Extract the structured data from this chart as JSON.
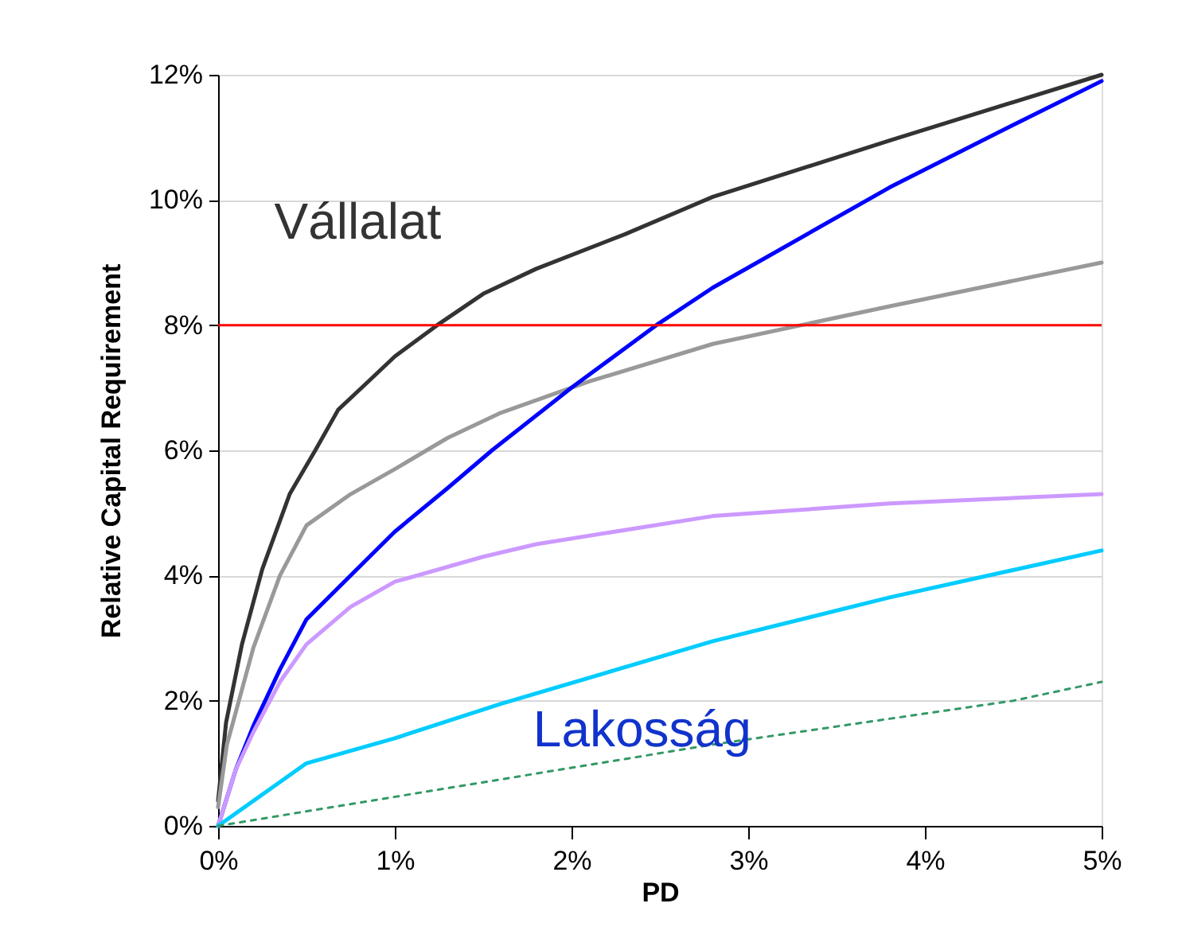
{
  "chart_data": {
    "type": "line",
    "xlabel": "PD",
    "ylabel": "Relative Capital Requirement",
    "xlim": [
      0,
      5
    ],
    "xticks": [
      {
        "value": 0,
        "label": "0%"
      },
      {
        "value": 1,
        "label": "1%"
      },
      {
        "value": 2,
        "label": "2%"
      },
      {
        "value": 3,
        "label": "3%"
      },
      {
        "value": 4,
        "label": "4%"
      },
      {
        "value": 5,
        "label": "5%"
      }
    ],
    "ylim": [
      0,
      12
    ],
    "yticks": [
      {
        "value": 0,
        "label": "0%"
      },
      {
        "value": 2,
        "label": "2%"
      },
      {
        "value": 4,
        "label": "4%"
      },
      {
        "value": 6,
        "label": "6%"
      },
      {
        "value": 8,
        "label": "8%"
      },
      {
        "value": 10,
        "label": "10%"
      },
      {
        "value": 12,
        "label": "12%"
      }
    ],
    "grid": "y",
    "marker": "none",
    "series": [
      {
        "color": "#333333",
        "x": [
          0,
          0.045,
          0.135,
          0.25,
          0.405,
          0.55,
          0.68,
          0.85,
          1.0,
          1.24,
          1.5,
          1.8,
          2.3,
          2.8,
          3.8,
          5.0
        ],
        "values": [
          0.4,
          1.65,
          2.9,
          4.1,
          5.3,
          6.0,
          6.65,
          7.1,
          7.5,
          8.0,
          8.5,
          8.9,
          9.45,
          10.05,
          10.95,
          12.0
        ]
      },
      {
        "color": "#999999",
        "x": [
          0,
          0.05,
          0.2,
          0.35,
          0.5,
          0.75,
          1.0,
          1.3,
          1.6,
          2.1,
          2.8,
          3.8,
          5.0
        ],
        "values": [
          0.3,
          1.3,
          2.85,
          4.0,
          4.8,
          5.3,
          5.7,
          6.2,
          6.6,
          7.1,
          7.7,
          8.3,
          9.0
        ]
      },
      {
        "color": "#0000ff",
        "x": [
          0,
          0.1,
          0.2,
          0.35,
          0.5,
          0.75,
          1.0,
          1.3,
          1.55,
          2.0,
          2.48,
          2.8,
          3.8,
          4.5,
          5.0
        ],
        "values": [
          0,
          0.9,
          1.6,
          2.5,
          3.3,
          4.0,
          4.7,
          5.4,
          6.0,
          7.0,
          8.0,
          8.6,
          10.2,
          11.2,
          11.9
        ]
      },
      {
        "color": "#cc99ff",
        "x": [
          0,
          0.1,
          0.2,
          0.35,
          0.5,
          0.75,
          1.0,
          1.5,
          1.8,
          2.8,
          3.8,
          5.0
        ],
        "values": [
          0,
          0.9,
          1.5,
          2.3,
          2.9,
          3.5,
          3.9,
          4.3,
          4.5,
          4.95,
          5.15,
          5.3
        ]
      },
      {
        "color": "#00ccff",
        "x": [
          0,
          0.5,
          1.0,
          1.6,
          2.8,
          3.8,
          5.0
        ],
        "values": [
          0,
          1.0,
          1.4,
          1.95,
          2.95,
          3.65,
          4.4
        ]
      },
      {
        "color": "#339966",
        "line_style": "dotted",
        "x": [
          0,
          2.8,
          4.5,
          5.0
        ],
        "values": [
          0,
          1.3,
          2.0,
          2.3
        ]
      }
    ],
    "ref_lines": [
      {
        "axis": "y",
        "value": 8,
        "color": "#ff0000"
      }
    ],
    "annotations": [
      "Vállalat",
      "Lakosság"
    ]
  }
}
